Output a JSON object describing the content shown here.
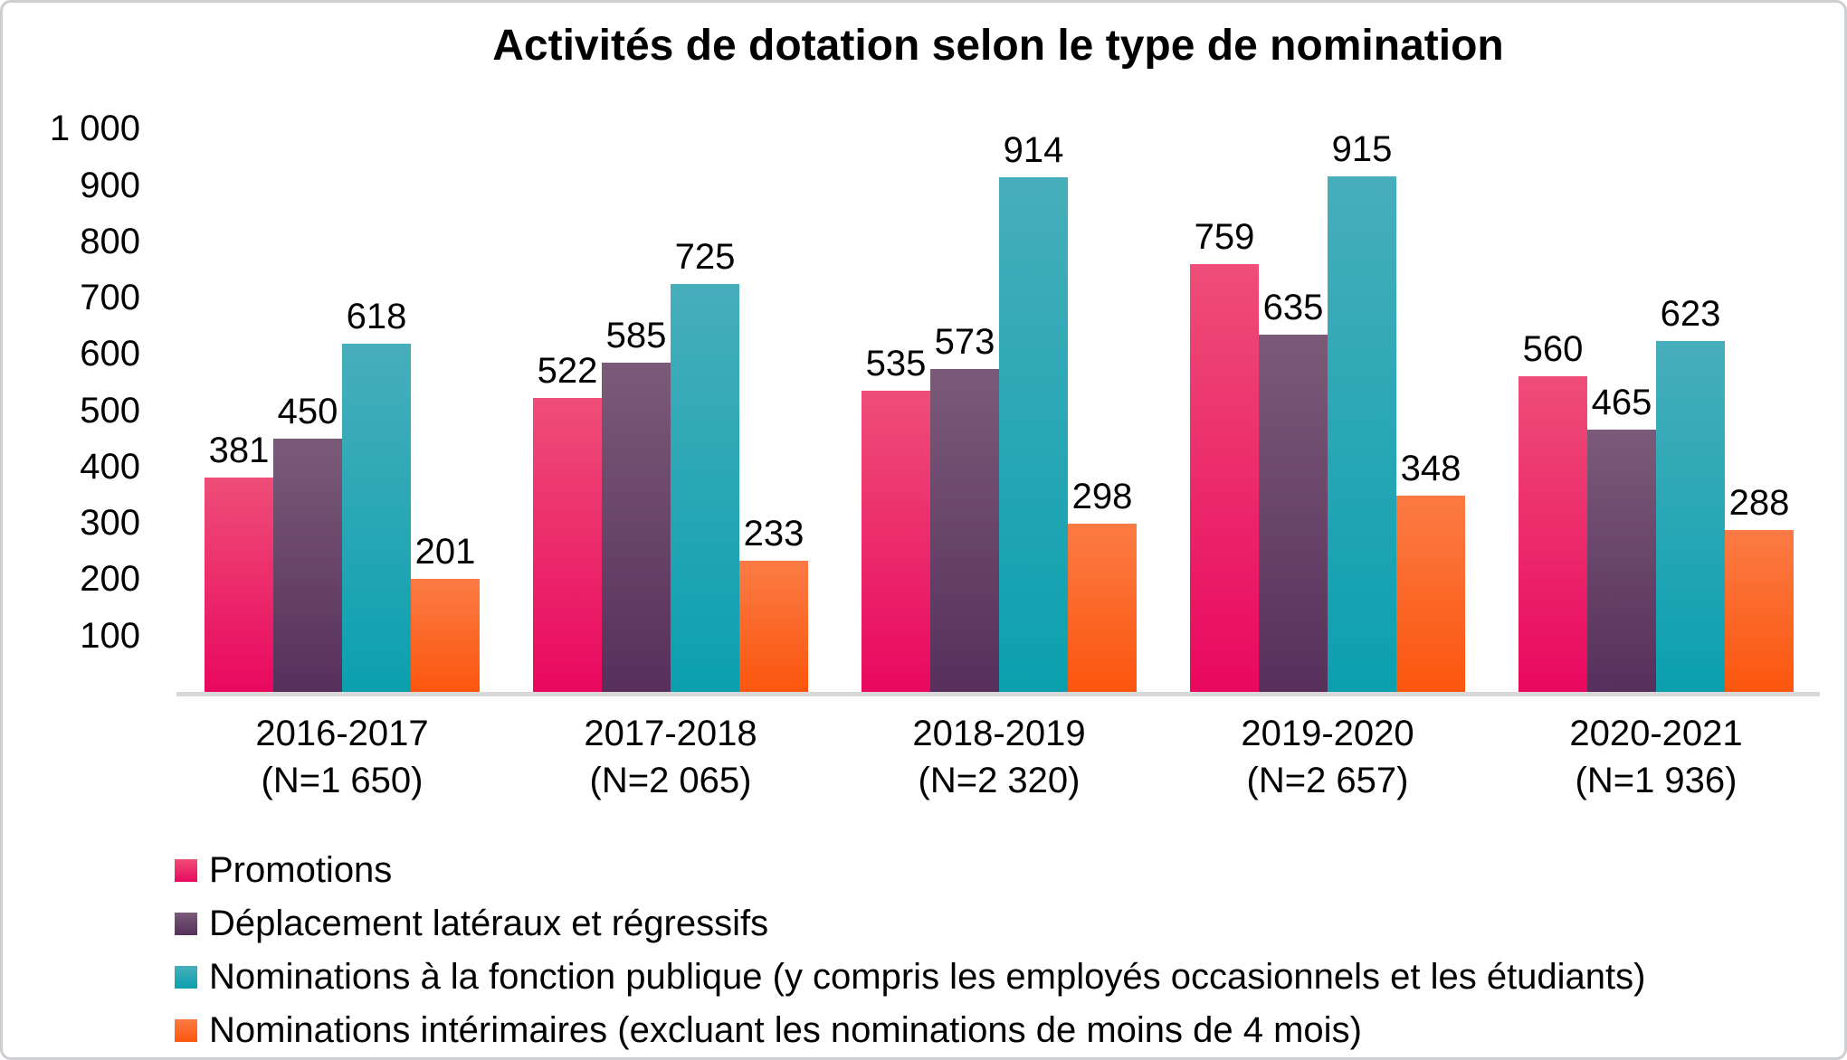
{
  "chart_data": {
    "type": "bar",
    "title": "Activités de dotation selon le type de nomination",
    "categories": [
      {
        "label": "2016-2017",
        "note": "(N=1 650)"
      },
      {
        "label": "2017-2018",
        "note": "(N=2 065)"
      },
      {
        "label": "2018-2019",
        "note": "(N=2 320)"
      },
      {
        "label": "2019-2020",
        "note": "(N=2 657)"
      },
      {
        "label": "2020-2021",
        "note": "(N=1 936)"
      }
    ],
    "series": [
      {
        "name": "Promotions",
        "values": [
          381,
          522,
          535,
          759,
          560
        ],
        "color_top": "#EE4E78",
        "color_bottom": "#E9085F"
      },
      {
        "name": "Déplacement latéraux et régressifs",
        "values": [
          450,
          585,
          573,
          635,
          465
        ],
        "color_top": "#7B5A79",
        "color_bottom": "#56305B"
      },
      {
        "name": "Nominations à la fonction publique (y compris les employés occasionnels et les étudiants)",
        "values": [
          618,
          725,
          914,
          915,
          623
        ],
        "color_top": "#47AEBB",
        "color_bottom": "#0BA0AF"
      },
      {
        "name": "Nominations intérimaires (excluant les nominations de moins de 4 mois)",
        "values": [
          201,
          233,
          298,
          348,
          288
        ],
        "color_top": "#FB7B44",
        "color_bottom": "#FB560E"
      }
    ],
    "xlabel": "",
    "ylabel": "",
    "ylim": [
      0,
      1000
    ],
    "yticks": [
      {
        "value": 1000,
        "label": "1 000"
      },
      {
        "value": 900,
        "label": "900"
      },
      {
        "value": 800,
        "label": "800"
      },
      {
        "value": 700,
        "label": "700"
      },
      {
        "value": 600,
        "label": "600"
      },
      {
        "value": 500,
        "label": "500"
      },
      {
        "value": 400,
        "label": "400"
      },
      {
        "value": 300,
        "label": "300"
      },
      {
        "value": 200,
        "label": "200"
      },
      {
        "value": 100,
        "label": "100"
      }
    ],
    "grid": false,
    "value_labels": true,
    "legend_position": "bottom-left",
    "axis_line_color": "#D9D9D9"
  }
}
